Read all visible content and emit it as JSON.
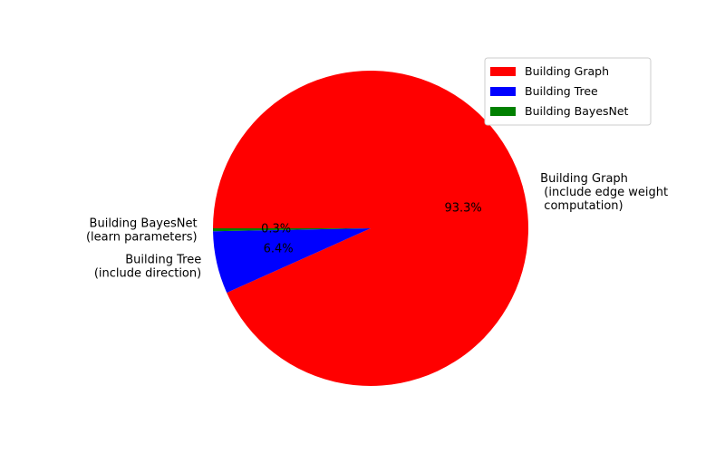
{
  "chart_data": {
    "type": "pie",
    "slices": [
      {
        "label_lines": [
          "Building Graph",
          " (include edge weight",
          " computation)"
        ],
        "legend": "Building Graph",
        "value": 93.3,
        "pct_text": "93.3%",
        "color": "#ff0000"
      },
      {
        "label_lines": [
          "Building Tree",
          "(include direction)"
        ],
        "legend": "Building Tree",
        "value": 6.4,
        "pct_text": "6.4%",
        "color": "#0000ff"
      },
      {
        "label_lines": [
          "Building BayesNet",
          "(learn parameters)"
        ],
        "legend": "Building BayesNet",
        "value": 0.3,
        "pct_text": "0.3%",
        "color": "#008000"
      }
    ],
    "start_angle_deg": 180,
    "direction": "clockwise",
    "legend_position": "upper-right"
  }
}
